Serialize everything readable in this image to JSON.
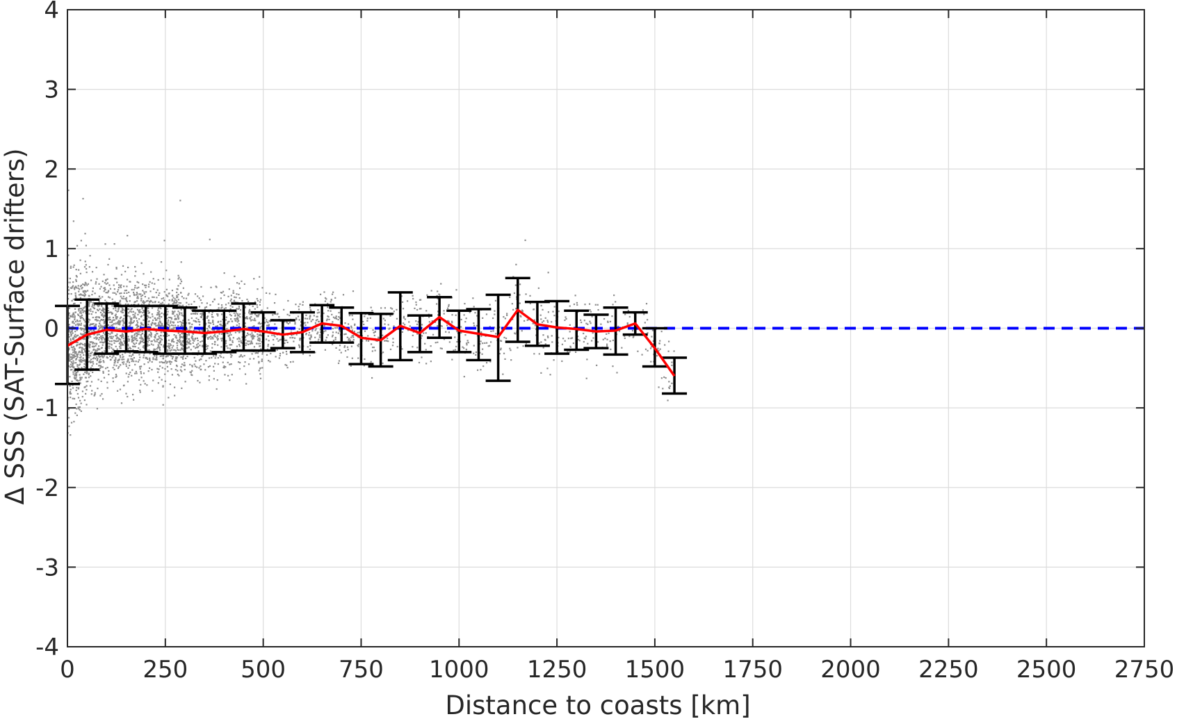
{
  "chart_data": {
    "type": "scatter",
    "title": "",
    "xlabel": "Distance to coasts [km]",
    "ylabel": "Δ SSS (SAT-Surface drifters)",
    "xlim": [
      0,
      2750
    ],
    "ylim": [
      -4,
      4
    ],
    "xticks": [
      0,
      250,
      500,
      750,
      1000,
      1250,
      1500,
      1750,
      2000,
      2250,
      2500,
      2750
    ],
    "yticks": [
      -4,
      -3,
      -2,
      -1,
      0,
      1,
      2,
      3,
      4
    ],
    "xtick_labels": [
      "0",
      "250",
      "500",
      "750",
      "1000",
      "1250",
      "1500",
      "1750",
      "2000",
      "2250",
      "2500",
      "2750"
    ],
    "ytick_labels": [
      "-4",
      "-3",
      "-2",
      "-1",
      "0",
      "1",
      "2",
      "3",
      "4"
    ],
    "grid": true,
    "colors": {
      "scatter": "#8c8c8c",
      "mean_line": "#ff0000",
      "zero_line": "#0000ff",
      "error_bars": "#000000",
      "grid": "#dcdcdc",
      "axes": "#262626"
    },
    "scatter_cloud": [
      {
        "x_range": [
          0,
          50
        ],
        "std": 0.45,
        "n": 500
      },
      {
        "x_range": [
          50,
          150
        ],
        "std": 0.32,
        "n": 700
      },
      {
        "x_range": [
          150,
          300
        ],
        "std": 0.3,
        "n": 900
      },
      {
        "x_range": [
          300,
          500
        ],
        "std": 0.25,
        "n": 700
      },
      {
        "x_range": [
          500,
          700
        ],
        "std": 0.18,
        "n": 300
      },
      {
        "x_range": [
          700,
          1000
        ],
        "std": 0.2,
        "n": 260
      },
      {
        "x_range": [
          1000,
          1300
        ],
        "std": 0.22,
        "n": 220
      },
      {
        "x_range": [
          1300,
          1550
        ],
        "std": 0.2,
        "n": 140
      }
    ],
    "zero_line": {
      "x": [
        0,
        2750
      ],
      "y": [
        0,
        0
      ],
      "style": "dashed"
    },
    "mean_series": {
      "x": [
        0,
        50,
        100,
        150,
        200,
        250,
        300,
        350,
        400,
        450,
        500,
        550,
        600,
        650,
        700,
        750,
        800,
        850,
        900,
        950,
        1000,
        1050,
        1100,
        1150,
        1200,
        1250,
        1300,
        1350,
        1400,
        1450,
        1500,
        1550
      ],
      "y": [
        -0.22,
        -0.08,
        -0.02,
        -0.04,
        -0.01,
        -0.03,
        -0.04,
        -0.06,
        -0.04,
        -0.01,
        -0.04,
        -0.08,
        -0.05,
        0.06,
        0.03,
        -0.12,
        -0.15,
        0.03,
        -0.06,
        0.14,
        -0.03,
        -0.07,
        -0.11,
        0.23,
        0.05,
        0.01,
        -0.01,
        -0.04,
        -0.03,
        0.06,
        -0.25,
        -0.6
      ]
    },
    "error_bars": [
      {
        "x": 0,
        "low": -0.7,
        "high": 0.28
      },
      {
        "x": 50,
        "low": -0.52,
        "high": 0.36
      },
      {
        "x": 100,
        "low": -0.32,
        "high": 0.31
      },
      {
        "x": 150,
        "low": -0.29,
        "high": 0.28
      },
      {
        "x": 200,
        "low": -0.3,
        "high": 0.28
      },
      {
        "x": 250,
        "low": -0.32,
        "high": 0.28
      },
      {
        "x": 300,
        "low": -0.32,
        "high": 0.26
      },
      {
        "x": 350,
        "low": -0.32,
        "high": 0.22
      },
      {
        "x": 400,
        "low": -0.3,
        "high": 0.22
      },
      {
        "x": 450,
        "low": -0.28,
        "high": 0.31
      },
      {
        "x": 500,
        "low": -0.28,
        "high": 0.2
      },
      {
        "x": 550,
        "low": -0.25,
        "high": 0.1
      },
      {
        "x": 600,
        "low": -0.3,
        "high": 0.2
      },
      {
        "x": 650,
        "low": -0.18,
        "high": 0.29
      },
      {
        "x": 700,
        "low": -0.18,
        "high": 0.26
      },
      {
        "x": 750,
        "low": -0.45,
        "high": 0.19
      },
      {
        "x": 800,
        "low": -0.48,
        "high": 0.18
      },
      {
        "x": 850,
        "low": -0.4,
        "high": 0.45
      },
      {
        "x": 900,
        "low": -0.3,
        "high": 0.16
      },
      {
        "x": 950,
        "low": -0.12,
        "high": 0.39
      },
      {
        "x": 1000,
        "low": -0.3,
        "high": 0.22
      },
      {
        "x": 1050,
        "low": -0.4,
        "high": 0.24
      },
      {
        "x": 1100,
        "low": -0.66,
        "high": 0.42
      },
      {
        "x": 1150,
        "low": -0.17,
        "high": 0.63
      },
      {
        "x": 1200,
        "low": -0.22,
        "high": 0.33
      },
      {
        "x": 1250,
        "low": -0.32,
        "high": 0.34
      },
      {
        "x": 1300,
        "low": -0.27,
        "high": 0.22
      },
      {
        "x": 1350,
        "low": -0.25,
        "high": 0.17
      },
      {
        "x": 1400,
        "low": -0.33,
        "high": 0.26
      },
      {
        "x": 1450,
        "low": -0.08,
        "high": 0.2
      },
      {
        "x": 1500,
        "low": -0.48,
        "high": 0.0
      },
      {
        "x": 1550,
        "low": -0.82,
        "high": -0.37
      }
    ]
  }
}
